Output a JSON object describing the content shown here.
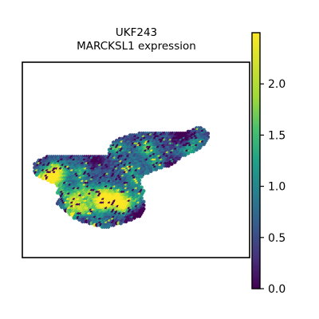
{
  "chart_data": {
    "type": "scatter",
    "title": "UKF243",
    "subtitle": "MARCKSL1 expression",
    "xlabel": "",
    "ylabel": "",
    "grid": false,
    "colormap": "viridis",
    "colorbar": {
      "min": 0.0,
      "max": 2.5,
      "ticks": [
        0.0,
        0.5,
        1.0,
        1.5,
        2.0
      ],
      "tick_labels": [
        "0.0",
        "0.5",
        "1.0",
        "1.5",
        "2.0"
      ]
    },
    "marker": "hexagon",
    "outline_rows": [
      [
        70,
        84,
        86
      ],
      [
        71,
        82,
        87
      ],
      [
        72,
        80,
        88
      ],
      [
        73,
        56,
        89
      ],
      [
        74,
        52,
        89
      ],
      [
        75,
        49,
        89
      ],
      [
        76,
        47,
        89
      ],
      [
        77,
        45,
        88
      ],
      [
        78,
        44,
        88
      ],
      [
        79,
        44,
        87
      ],
      [
        80,
        43,
        86
      ],
      [
        81,
        43,
        85
      ],
      [
        82,
        42,
        84
      ],
      [
        83,
        42,
        82
      ],
      [
        84,
        42,
        80
      ],
      [
        85,
        42,
        78
      ],
      [
        86,
        12,
        76
      ],
      [
        87,
        10,
        75
      ],
      [
        88,
        8,
        74
      ],
      [
        89,
        7,
        73
      ],
      [
        90,
        6,
        72
      ],
      [
        91,
        6,
        70
      ],
      [
        92,
        6,
        67
      ],
      [
        93,
        6,
        64
      ],
      [
        94,
        6,
        62
      ],
      [
        95,
        6,
        60
      ],
      [
        96,
        7,
        58
      ],
      [
        97,
        8,
        57
      ],
      [
        98,
        10,
        56
      ],
      [
        99,
        12,
        56
      ],
      [
        100,
        14,
        56
      ],
      [
        101,
        16,
        56
      ],
      [
        102,
        17,
        56
      ],
      [
        103,
        18,
        57
      ],
      [
        104,
        18,
        57
      ],
      [
        105,
        17,
        58
      ],
      [
        106,
        17,
        58
      ],
      [
        107,
        18,
        57
      ],
      [
        108,
        19,
        57
      ],
      [
        109,
        19,
        57
      ],
      [
        110,
        18,
        57
      ],
      [
        111,
        17,
        58
      ],
      [
        112,
        17,
        58
      ],
      [
        113,
        18,
        58
      ],
      [
        114,
        19,
        58
      ],
      [
        115,
        20,
        58
      ],
      [
        116,
        21,
        58
      ],
      [
        117,
        22,
        57
      ],
      [
        118,
        23,
        57
      ],
      [
        119,
        24,
        56
      ],
      [
        120,
        25,
        54
      ],
      [
        121,
        27,
        52
      ],
      [
        122,
        29,
        50
      ],
      [
        123,
        32,
        47
      ],
      [
        124,
        35,
        44
      ],
      [
        125,
        38,
        41
      ]
    ],
    "hot_spots": [
      [
        14,
        97,
        1.2
      ],
      [
        16,
        94,
        1.1
      ],
      [
        17,
        93,
        1.6
      ],
      [
        12,
        99,
        1.3
      ],
      [
        10,
        98,
        1.2
      ],
      [
        45,
        81,
        2.1
      ],
      [
        60,
        82,
        2.0
      ],
      [
        18,
        107,
        2.2
      ],
      [
        24,
        110,
        1.9
      ],
      [
        28,
        105,
        1.5
      ],
      [
        33,
        107,
        1.6
      ],
      [
        40,
        105,
        1.5
      ],
      [
        46,
        108,
        1.4
      ],
      [
        38,
        113,
        2.0
      ],
      [
        30,
        115,
        1.8
      ],
      [
        22,
        118,
        1.4
      ],
      [
        30,
        118,
        1.2
      ],
      [
        40,
        112,
        1.7
      ],
      [
        47,
        110,
        1.8
      ],
      [
        55,
        111,
        1.5
      ],
      [
        49,
        114,
        1.1
      ],
      [
        18,
        99,
        1.8
      ],
      [
        28,
        95,
        1.6
      ],
      [
        9,
        102,
        1.8
      ],
      [
        55,
        100,
        1.2
      ],
      [
        60,
        106,
        1.0
      ],
      [
        80,
        83,
        1.3
      ],
      [
        83,
        78,
        1.0
      ],
      [
        65,
        90,
        1.4
      ],
      [
        52,
        93,
        1.2
      ],
      [
        36,
        123,
        1.1
      ],
      [
        40,
        110,
        2.4
      ],
      [
        48,
        115,
        2.2
      ],
      [
        25,
        113,
        1.2
      ]
    ],
    "cold_spots": [
      [
        66,
        121,
        1.0
      ],
      [
        60,
        118,
        1.0
      ],
      [
        63,
        112,
        1.0
      ],
      [
        72,
        92,
        1.0
      ],
      [
        77,
        75,
        1.0
      ],
      [
        53,
        121,
        0.7
      ],
      [
        30,
        122,
        0.7
      ],
      [
        17,
        109,
        0.7
      ],
      [
        35,
        88,
        0.6
      ],
      [
        44,
        76,
        0.7
      ],
      [
        65,
        107,
        0.8
      ],
      [
        72,
        101,
        0.9
      ]
    ]
  }
}
